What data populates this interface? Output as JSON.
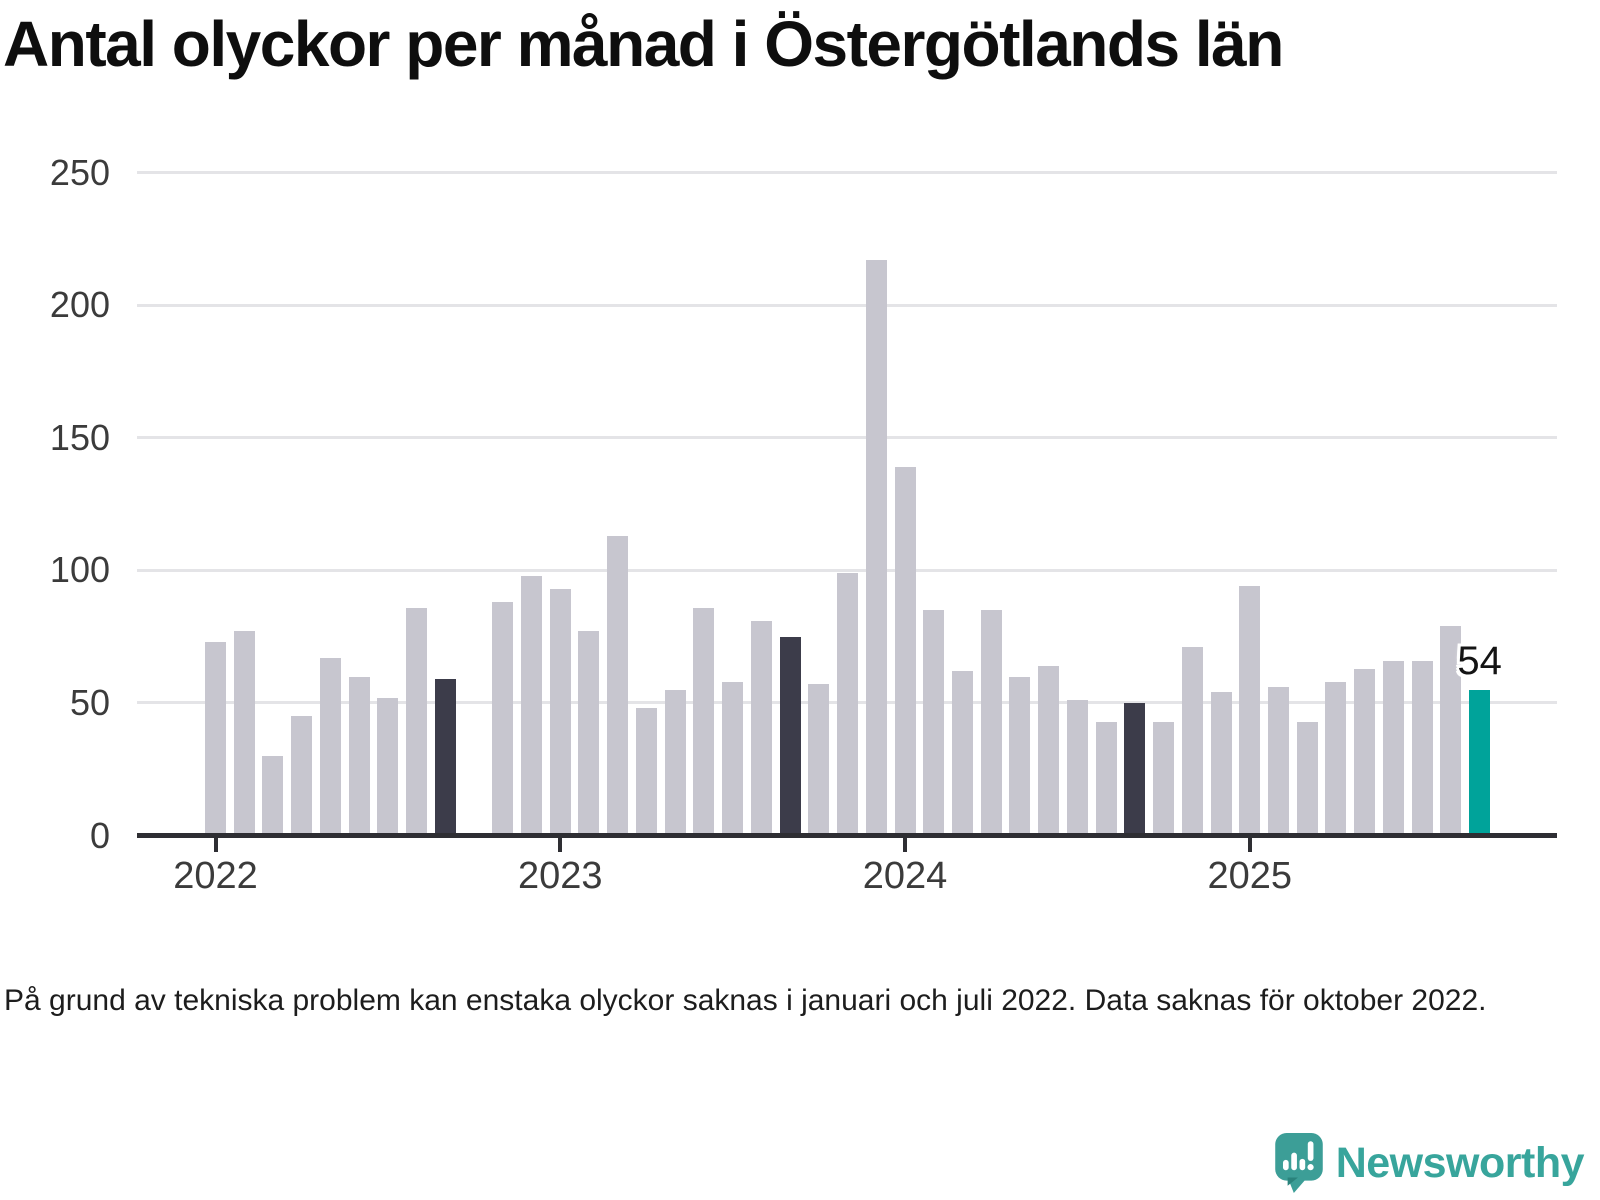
{
  "title": "Antal olyckor per månad i Östergötlands län",
  "footnote": "På grund av tekniska problem kan enstaka olyckor saknas i januari och juli 2022. Data saknas för oktober 2022.",
  "logo": {
    "brand": "Newsworthy"
  },
  "colors": {
    "bar_default": "#C7C6CF",
    "bar_dark": "#3C3C4A",
    "bar_highlight": "#00A39A",
    "axis": "#2E2E33",
    "gridline": "#E4E4E7",
    "tick_text": "#3B3B3B",
    "title_text": "#0E0E0E",
    "footnote_text": "#1D1D1D",
    "logo_teal": "#38A59C",
    "logo_icon_teal": "#3C9E97",
    "logo_icon_fold": "#2A837C"
  },
  "chart_data": {
    "type": "bar",
    "title": "Antal olyckor per månad i Östergötlands län",
    "xlabel": "",
    "ylabel": "",
    "ylim": [
      0,
      250
    ],
    "yticks": [
      0,
      50,
      100,
      150,
      200,
      250
    ],
    "grid": "horizontal",
    "legend": "none",
    "missing_months": [
      "2022-10"
    ],
    "year_ticks": [
      {
        "label": "2022",
        "month": "2022-01"
      },
      {
        "label": "2023",
        "month": "2023-01"
      },
      {
        "label": "2024",
        "month": "2024-01"
      },
      {
        "label": "2025",
        "month": "2025-01"
      }
    ],
    "annotation": {
      "text": "54",
      "month": "2025-09"
    },
    "series": [
      {
        "m": "2022-01",
        "v": 72,
        "c": "default"
      },
      {
        "m": "2022-02",
        "v": 76,
        "c": "default"
      },
      {
        "m": "2022-03",
        "v": 29,
        "c": "default"
      },
      {
        "m": "2022-04",
        "v": 44,
        "c": "default"
      },
      {
        "m": "2022-05",
        "v": 66,
        "c": "default"
      },
      {
        "m": "2022-06",
        "v": 59,
        "c": "default"
      },
      {
        "m": "2022-07",
        "v": 51,
        "c": "default"
      },
      {
        "m": "2022-08",
        "v": 85,
        "c": "default"
      },
      {
        "m": "2022-09",
        "v": 58,
        "c": "dark"
      },
      {
        "m": "2022-10",
        "v": null,
        "c": "default"
      },
      {
        "m": "2022-11",
        "v": 87,
        "c": "default"
      },
      {
        "m": "2022-12",
        "v": 97,
        "c": "default"
      },
      {
        "m": "2023-01",
        "v": 92,
        "c": "default"
      },
      {
        "m": "2023-02",
        "v": 76,
        "c": "default"
      },
      {
        "m": "2023-03",
        "v": 112,
        "c": "default"
      },
      {
        "m": "2023-04",
        "v": 47,
        "c": "default"
      },
      {
        "m": "2023-05",
        "v": 54,
        "c": "default"
      },
      {
        "m": "2023-06",
        "v": 85,
        "c": "default"
      },
      {
        "m": "2023-07",
        "v": 57,
        "c": "default"
      },
      {
        "m": "2023-08",
        "v": 80,
        "c": "default"
      },
      {
        "m": "2023-09",
        "v": 74,
        "c": "dark"
      },
      {
        "m": "2023-10",
        "v": 56,
        "c": "default"
      },
      {
        "m": "2023-11",
        "v": 98,
        "c": "default"
      },
      {
        "m": "2023-12",
        "v": 216,
        "c": "default"
      },
      {
        "m": "2024-01",
        "v": 138,
        "c": "default"
      },
      {
        "m": "2024-02",
        "v": 84,
        "c": "default"
      },
      {
        "m": "2024-03",
        "v": 61,
        "c": "default"
      },
      {
        "m": "2024-04",
        "v": 84,
        "c": "default"
      },
      {
        "m": "2024-05",
        "v": 59,
        "c": "default"
      },
      {
        "m": "2024-06",
        "v": 63,
        "c": "default"
      },
      {
        "m": "2024-07",
        "v": 50,
        "c": "default"
      },
      {
        "m": "2024-08",
        "v": 42,
        "c": "default"
      },
      {
        "m": "2024-09",
        "v": 49,
        "c": "dark"
      },
      {
        "m": "2024-10",
        "v": 42,
        "c": "default"
      },
      {
        "m": "2024-11",
        "v": 70,
        "c": "default"
      },
      {
        "m": "2024-12",
        "v": 53,
        "c": "default"
      },
      {
        "m": "2025-01",
        "v": 93,
        "c": "default"
      },
      {
        "m": "2025-02",
        "v": 55,
        "c": "default"
      },
      {
        "m": "2025-03",
        "v": 42,
        "c": "default"
      },
      {
        "m": "2025-04",
        "v": 57,
        "c": "default"
      },
      {
        "m": "2025-05",
        "v": 62,
        "c": "default"
      },
      {
        "m": "2025-06",
        "v": 65,
        "c": "default"
      },
      {
        "m": "2025-07",
        "v": 65,
        "c": "default"
      },
      {
        "m": "2025-08",
        "v": 78,
        "c": "default"
      },
      {
        "m": "2025-09",
        "v": 54,
        "c": "highlight"
      }
    ]
  }
}
